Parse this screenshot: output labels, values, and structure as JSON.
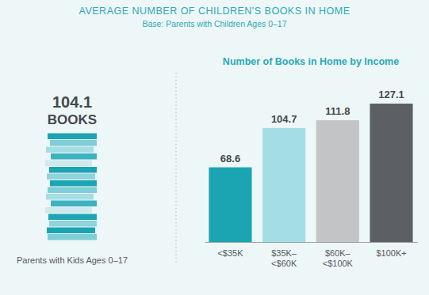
{
  "header": {
    "title": "AVERAGE NUMBER OF CHILDREN'S BOOKS IN HOME",
    "subtitle": "Base: Parents with Children Ages 0–17"
  },
  "stat": {
    "value": 104.1,
    "unit": "BOOKS",
    "caption": "Parents with Kids Ages 0–17"
  },
  "chart_data": {
    "type": "bar",
    "title": "Number of Books in Home by Income",
    "categories": [
      "<$35K",
      "$35K–<$60K",
      "$60K–<$100K",
      "$100K+"
    ],
    "values": [
      68.6,
      104.7,
      111.8,
      127.1
    ],
    "colors": [
      "#1ba5b2",
      "#a5dde5",
      "#c3c4c5",
      "#5c6065"
    ],
    "ylim": [
      0,
      127.1
    ],
    "data_labels": true,
    "tick_labels": "x"
  }
}
